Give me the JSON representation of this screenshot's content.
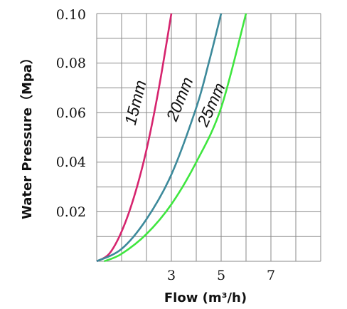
{
  "chart_data": {
    "type": "line",
    "xlabel": "Flow (m³/h)",
    "ylabel": "Water Pressure（Mpa）",
    "xlim": [
      0,
      9
    ],
    "ylim": [
      0,
      0.1
    ],
    "x_ticks": [
      "3",
      "5",
      "7"
    ],
    "y_ticks": [
      "0.02",
      "0.04",
      "0.06",
      "0.08",
      "0.10"
    ],
    "grid": true,
    "series": [
      {
        "name": "15mm",
        "color": "#d6246e",
        "x": [
          0,
          0.5,
          1.0,
          1.5,
          2.0,
          2.5,
          3.0
        ],
        "y": [
          0,
          0.003,
          0.012,
          0.026,
          0.045,
          0.07,
          0.1
        ]
      },
      {
        "name": "20mm",
        "color": "#3d8a9b",
        "x": [
          0,
          1.0,
          2.0,
          3.0,
          4.0,
          4.5,
          5.0
        ],
        "y": [
          0,
          0.005,
          0.017,
          0.035,
          0.062,
          0.08,
          0.1
        ]
      },
      {
        "name": "25mm",
        "color": "#3fe63f",
        "x": [
          0.3,
          1.0,
          2.0,
          3.0,
          4.0,
          5.0,
          6.0
        ],
        "y": [
          0,
          0.003,
          0.011,
          0.023,
          0.04,
          0.062,
          0.1
        ]
      }
    ]
  }
}
